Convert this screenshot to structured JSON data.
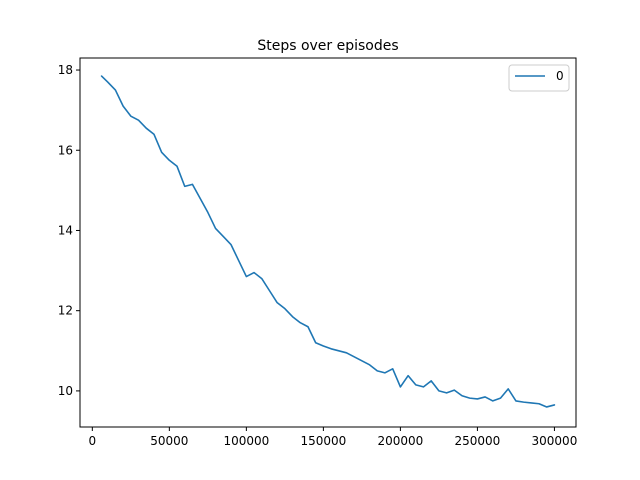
{
  "chart_data": {
    "type": "line",
    "title": "Steps over episodes",
    "xlabel": "",
    "ylabel": "",
    "xlim": [
      -8000,
      314000
    ],
    "ylim": [
      9.1,
      18.3
    ],
    "x_ticks": [
      0,
      50000,
      100000,
      150000,
      200000,
      250000,
      300000
    ],
    "x_tick_labels": [
      "0",
      "50000",
      "100000",
      "150000",
      "200000",
      "250000",
      "300000"
    ],
    "y_ticks": [
      10,
      12,
      14,
      16,
      18
    ],
    "y_tick_labels": [
      "10",
      "12",
      "14",
      "16",
      "18"
    ],
    "grid": false,
    "legend": {
      "position": "top-right",
      "entries": [
        "0"
      ]
    },
    "series": [
      {
        "name": "0",
        "color": "#1f77b4",
        "x": [
          6000,
          10000,
          15000,
          20000,
          25000,
          30000,
          35000,
          40000,
          45000,
          50000,
          55000,
          60000,
          65000,
          70000,
          75000,
          80000,
          85000,
          90000,
          95000,
          100000,
          105000,
          110000,
          115000,
          120000,
          125000,
          130000,
          135000,
          140000,
          145000,
          150000,
          155000,
          160000,
          165000,
          170000,
          175000,
          180000,
          185000,
          190000,
          195000,
          200000,
          205000,
          210000,
          215000,
          220000,
          225000,
          230000,
          235000,
          240000,
          245000,
          250000,
          255000,
          260000,
          265000,
          270000,
          275000,
          280000,
          285000,
          290000,
          295000,
          300000
        ],
        "y": [
          17.85,
          17.7,
          17.5,
          17.1,
          16.85,
          16.75,
          16.55,
          16.4,
          15.95,
          15.75,
          15.6,
          15.1,
          15.15,
          14.8,
          14.45,
          14.05,
          13.85,
          13.65,
          13.25,
          12.85,
          12.95,
          12.8,
          12.5,
          12.2,
          12.05,
          11.85,
          11.7,
          11.6,
          11.2,
          11.12,
          11.05,
          11.0,
          10.95,
          10.85,
          10.75,
          10.65,
          10.5,
          10.45,
          10.55,
          10.1,
          10.38,
          10.15,
          10.1,
          10.25,
          10.0,
          9.95,
          10.02,
          9.88,
          9.82,
          9.8,
          9.85,
          9.75,
          9.82,
          10.05,
          9.75,
          9.72,
          9.7,
          9.68,
          9.6,
          9.65
        ]
      }
    ]
  }
}
